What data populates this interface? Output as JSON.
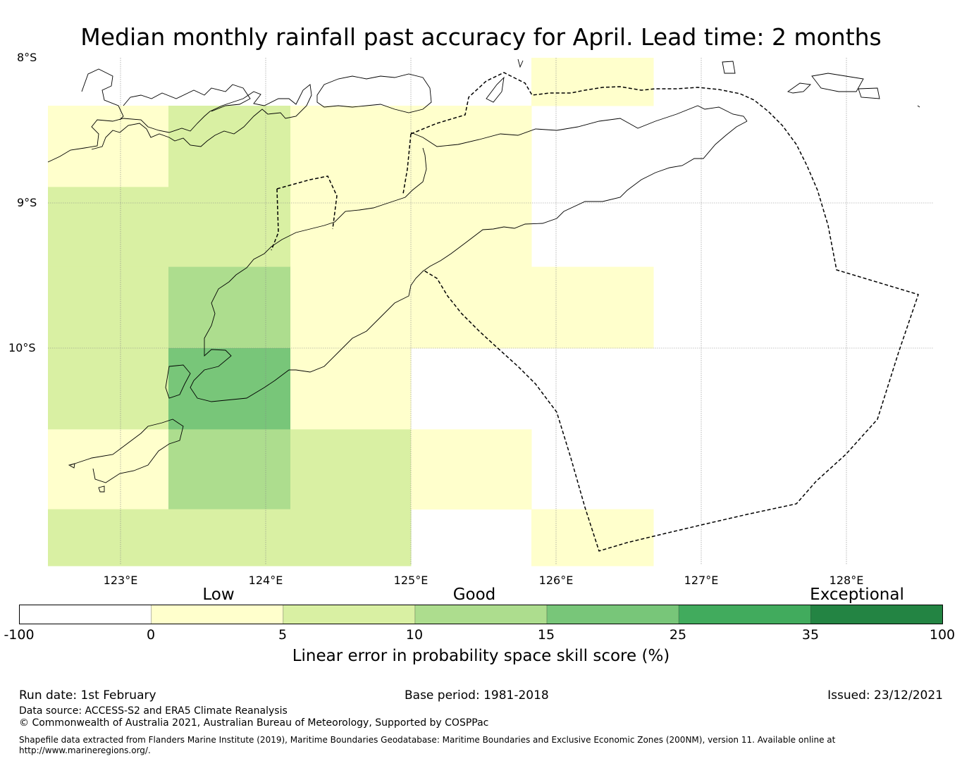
{
  "title": "Median monthly rainfall past accuracy for April. Lead time: 2 months",
  "lat_labels": [
    "8°S",
    "9°S",
    "10°S"
  ],
  "lon_labels": [
    "123°E",
    "124°E",
    "125°E",
    "126°E",
    "127°E",
    "128°E"
  ],
  "colorbar": {
    "categories": [
      "Low",
      "Good",
      "Exceptional"
    ],
    "ticks": [
      "-100",
      "0",
      "5",
      "10",
      "15",
      "25",
      "35",
      "100"
    ],
    "colors": [
      "#ffffff",
      "#ffffcc",
      "#d9f0a3",
      "#addd8e",
      "#78c679",
      "#41ab5d",
      "#238443"
    ],
    "label": "Linear error in probability space skill score (%)"
  },
  "footer": {
    "run_date": "Run date: 1st February",
    "base_period": "Base period: 1981-2018",
    "issued": "Issued: 23/12/2021",
    "data_source": "Data source: ACCESS-S2 and ERA5 Climate Reanalysis",
    "copyright": "© Commonwealth of Australia 2021, Australian Bureau of Meteorology, Supported by COSPPac",
    "shapefile_line1": "Shapefile data extracted from Flanders Marine Institute (2019), Maritime Boundaries Geodatabase: Maritime Boundaries and Exclusive Economic Zones (200NM), version 11. Available online at",
    "shapefile_line2": "http://www.marineregions.org/."
  },
  "grid_cells": {
    "lon_edges": [
      122.5,
      123.33,
      124.17,
      125.0,
      125.83,
      126.67
    ],
    "lat_edges": [
      -8.33,
      -8.89,
      -9.44,
      -10.0,
      -10.56,
      -11.11,
      -11.5
    ],
    "categories_by_row": [
      [
        1,
        2,
        1,
        1,
        0
      ],
      [
        2,
        2,
        1,
        1,
        0
      ],
      [
        2,
        3,
        1,
        1,
        1
      ],
      [
        2,
        4,
        1,
        0,
        0
      ],
      [
        1,
        3,
        2,
        1,
        0
      ],
      [
        2,
        2,
        2,
        0,
        1
      ]
    ],
    "extra_cells": [
      {
        "lon": [
          125.83,
          126.67
        ],
        "lat": [
          -8.0,
          -8.33
        ],
        "category": 1
      }
    ]
  }
}
